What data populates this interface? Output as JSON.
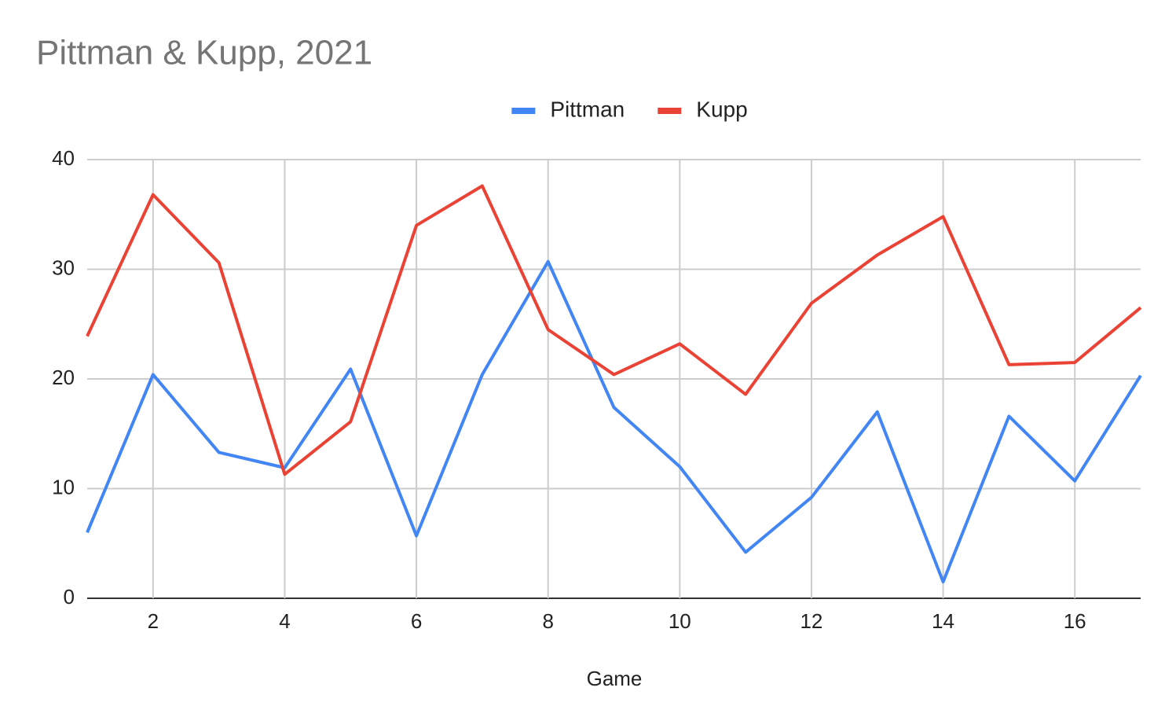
{
  "chart_data": {
    "type": "line",
    "title": "Pittman & Kupp, 2021",
    "x_label": "Game",
    "x": [
      1,
      2,
      3,
      4,
      5,
      6,
      7,
      8,
      9,
      10,
      11,
      12,
      13,
      14,
      15,
      16,
      17
    ],
    "series": [
      {
        "name": "Pittman",
        "color": "#4285f4",
        "values": [
          6.0,
          20.4,
          13.3,
          11.9,
          20.9,
          5.7,
          20.4,
          30.7,
          17.4,
          12.0,
          4.2,
          9.2,
          17.0,
          1.5,
          16.6,
          10.7,
          20.3
        ]
      },
      {
        "name": "Kupp",
        "color": "#ea4335",
        "values": [
          23.9,
          36.8,
          30.6,
          11.3,
          16.1,
          34.0,
          37.6,
          24.5,
          20.4,
          23.2,
          18.6,
          26.9,
          31.3,
          34.8,
          21.3,
          21.5,
          26.5
        ]
      }
    ],
    "xlim": [
      1,
      17
    ],
    "xticks": [
      2,
      4,
      6,
      8,
      10,
      12,
      14,
      16
    ],
    "ylim": [
      0,
      40
    ],
    "yticks": [
      0,
      10,
      20,
      30,
      40
    ],
    "grid": true,
    "legend": "top"
  }
}
